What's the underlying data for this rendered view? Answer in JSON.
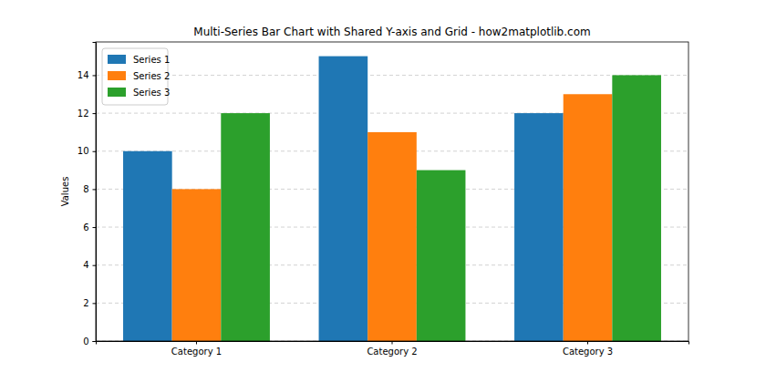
{
  "chart_data": {
    "type": "bar",
    "title": "Multi-Series Bar Chart with Shared Y-axis and Grid - how2matplotlib.com",
    "y_label": "Values",
    "categories": [
      "Category 1",
      "Category 2",
      "Category 3"
    ],
    "series": [
      {
        "name": "Series 1",
        "color": "#1f77b4",
        "values": [
          10,
          15,
          12
        ]
      },
      {
        "name": "Series 2",
        "color": "#ff7f0e",
        "values": [
          8,
          11,
          13
        ]
      },
      {
        "name": "Series 3",
        "color": "#2ca02c",
        "values": [
          12,
          9,
          14
        ]
      }
    ],
    "ylim": [
      0,
      15.75
    ],
    "yticks": [
      0,
      2,
      4,
      6,
      8,
      10,
      12,
      14
    ],
    "grid": true,
    "legend": "upper left"
  }
}
